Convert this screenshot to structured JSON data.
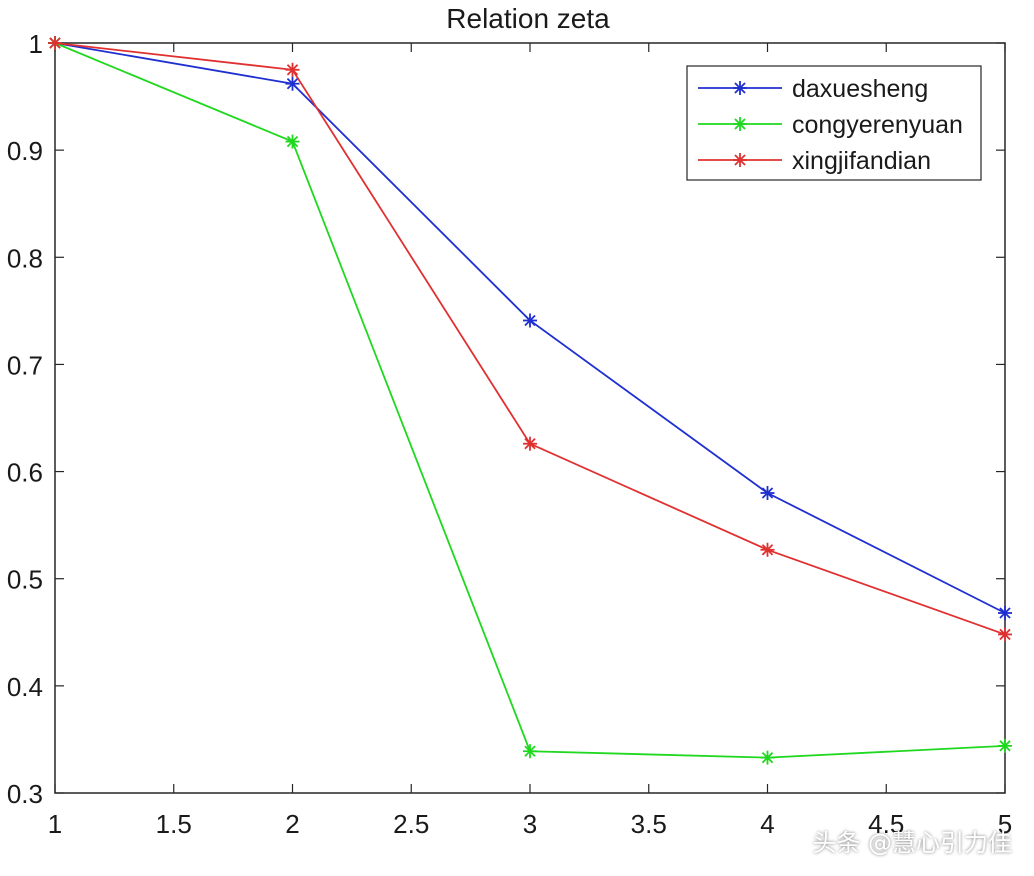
{
  "chart_data": {
    "type": "line",
    "title": "Relation zeta",
    "xlabel": "",
    "ylabel": "",
    "xlim": [
      1,
      5
    ],
    "ylim": [
      0.3,
      1
    ],
    "x": [
      1,
      2,
      3,
      4,
      5
    ],
    "xticks": [
      "1",
      "1.5",
      "2",
      "2.5",
      "3",
      "3.5",
      "4",
      "4.5",
      "5"
    ],
    "xtick_values": [
      1,
      1.5,
      2,
      2.5,
      3,
      3.5,
      4,
      4.5,
      5
    ],
    "yticks": [
      "0.3",
      "0.4",
      "0.5",
      "0.6",
      "0.7",
      "0.8",
      "0.9",
      "1"
    ],
    "ytick_values": [
      0.3,
      0.4,
      0.5,
      0.6,
      0.7,
      0.8,
      0.9,
      1
    ],
    "grid": false,
    "legend_position": "top-right",
    "series": [
      {
        "name": "daxuesheng",
        "color": "#1f2fd0",
        "marker": "asterisk",
        "values": [
          1.0,
          0.962,
          0.741,
          0.58,
          0.468
        ]
      },
      {
        "name": "congyerenyuan",
        "color": "#1fd81f",
        "marker": "asterisk",
        "values": [
          1.0,
          0.908,
          0.339,
          0.333,
          0.344
        ]
      },
      {
        "name": "xingjifandian",
        "color": "#e03030",
        "marker": "asterisk",
        "values": [
          1.0,
          0.975,
          0.626,
          0.527,
          0.448
        ]
      }
    ]
  },
  "watermark": "头条 @慧心引力佳"
}
